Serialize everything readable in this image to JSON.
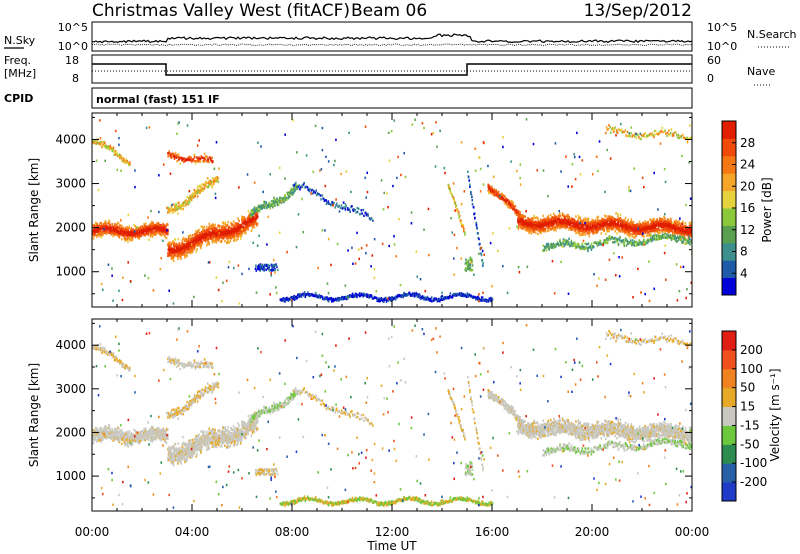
{
  "header": {
    "station": "Christmas Valley West (fitACF)",
    "beam": "Beam 06",
    "date": "13/Sep/2012"
  },
  "top_panels": {
    "nsky_label": "N.Sky",
    "nsky_ticks": [
      "10^5",
      "10^0"
    ],
    "nsearch_label": "N.Search",
    "nsearch_ticks": [
      "10^5",
      "10^0"
    ],
    "freq_label": "Freq.",
    "freq_unit": "[MHz]",
    "freq_ticks": [
      "18",
      "8"
    ],
    "nave_label": "Nave",
    "nave_ticks": [
      "60",
      "0"
    ],
    "cpid_label": "CPID",
    "cpid_text": "normal (fast) 151 IF"
  },
  "chart_data": [
    {
      "type": "heatmap",
      "name": "power",
      "ylabel": "Slant Range [km]",
      "y_ticks": [
        "4000",
        "3000",
        "2000",
        "1000"
      ],
      "ylim": [
        200,
        4600
      ],
      "colorbar_label": "Power [dB]",
      "colorbar_ticks": [
        "28",
        "24",
        "20",
        "16",
        "12",
        "8",
        "4"
      ],
      "colorbar_colors": [
        "#0000d8",
        "#1e5aa8",
        "#3c8f8c",
        "#5aa050",
        "#8cc83c",
        "#e6d23c",
        "#f5a528",
        "#f57814",
        "#f04b0a",
        "#e11e00"
      ],
      "colorbar_range": [
        0,
        32
      ]
    },
    {
      "type": "heatmap",
      "name": "velocity",
      "ylabel": "Slant Range [km]",
      "y_ticks": [
        "4000",
        "3000",
        "2000",
        "1000"
      ],
      "ylim": [
        200,
        4600
      ],
      "colorbar_label": "Velocity [m s⁻¹]",
      "colorbar_ticks": [
        "200",
        "100",
        "50",
        "15",
        "-15",
        "-50",
        "-100",
        "-200"
      ],
      "colorbar_colors": [
        "#1e3cc8",
        "#2860a8",
        "#2d8c50",
        "#6cc83c",
        "#c8c8c0",
        "#e6aa28",
        "#f08220",
        "#f0501e",
        "#e11e14"
      ],
      "colorbar_range": [
        -250,
        250
      ]
    }
  ],
  "x_axis": {
    "label": "Time UT",
    "ticks": [
      "00:00",
      "04:00",
      "08:00",
      "12:00",
      "16:00",
      "20:00",
      "00:00"
    ]
  }
}
